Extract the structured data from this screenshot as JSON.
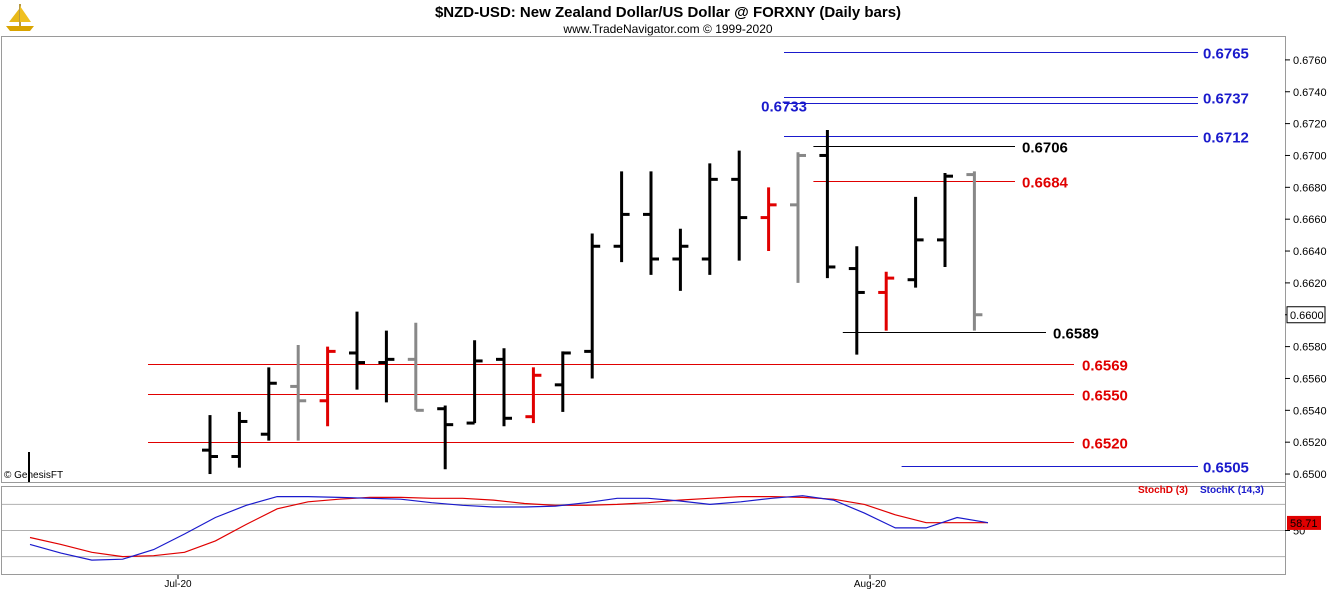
{
  "header": {
    "title": "$NZD-USD:  New Zealand Dollar/US Dollar @ FORXNY  (Daily bars)",
    "subtitle": "www.TradeNavigator.com © 1999-2020"
  },
  "logo_icon": "genesis-ship-logo-icon",
  "copyright": "© GenesisFT",
  "colors": {
    "bar_black": "#000000",
    "bar_gray": "#888888",
    "bar_red": "#e00000",
    "level_blue": "#1a1acc",
    "level_red": "#e00000",
    "level_black": "#000000",
    "stoch_k": "#1a1acc",
    "stoch_d": "#e00000"
  },
  "chart_data": [
    {
      "type": "ohlc",
      "title": "$NZD-USD:  New Zealand Dollar/US Dollar @ FORXNY  (Daily bars)",
      "ylim": [
        0.6495,
        0.6775
      ],
      "y_ticks": [
        "0.6760",
        "0.6740",
        "0.6720",
        "0.6700",
        "0.6680",
        "0.6660",
        "0.6640",
        "0.6620",
        "0.6600",
        "0.6580",
        "0.6560",
        "0.6540",
        "0.6520",
        "0.6500"
      ],
      "last_price": "0.6600",
      "x_ticks": [
        "Jul-20",
        "Aug-20"
      ],
      "bars": [
        {
          "open": 0.6515,
          "high": 0.6537,
          "low": 0.65,
          "close": 0.6511,
          "color": "black"
        },
        {
          "open": 0.6511,
          "high": 0.6539,
          "low": 0.6504,
          "close": 0.6533,
          "color": "black"
        },
        {
          "open": 0.6525,
          "high": 0.6567,
          "low": 0.6521,
          "close": 0.6557,
          "color": "black"
        },
        {
          "open": 0.6555,
          "high": 0.6581,
          "low": 0.6521,
          "close": 0.6546,
          "color": "gray"
        },
        {
          "open": 0.6546,
          "high": 0.658,
          "low": 0.653,
          "close": 0.6577,
          "color": "red"
        },
        {
          "open": 0.6576,
          "high": 0.6602,
          "low": 0.6553,
          "close": 0.657,
          "color": "black"
        },
        {
          "open": 0.657,
          "high": 0.659,
          "low": 0.6545,
          "close": 0.6572,
          "color": "black"
        },
        {
          "open": 0.6572,
          "high": 0.6595,
          "low": 0.654,
          "close": 0.654,
          "color": "gray"
        },
        {
          "open": 0.6541,
          "high": 0.6543,
          "low": 0.6503,
          "close": 0.6531,
          "color": "black"
        },
        {
          "open": 0.6532,
          "high": 0.6584,
          "low": 0.6532,
          "close": 0.6571,
          "color": "black"
        },
        {
          "open": 0.6572,
          "high": 0.6579,
          "low": 0.653,
          "close": 0.6535,
          "color": "black"
        },
        {
          "open": 0.6536,
          "high": 0.6567,
          "low": 0.6532,
          "close": 0.6562,
          "color": "red"
        },
        {
          "open": 0.6556,
          "high": 0.6577,
          "low": 0.6539,
          "close": 0.6576,
          "color": "black"
        },
        {
          "open": 0.6577,
          "high": 0.6651,
          "low": 0.656,
          "close": 0.6643,
          "color": "black"
        },
        {
          "open": 0.6643,
          "high": 0.669,
          "low": 0.6633,
          "close": 0.6663,
          "color": "black"
        },
        {
          "open": 0.6663,
          "high": 0.669,
          "low": 0.6625,
          "close": 0.6635,
          "color": "black"
        },
        {
          "open": 0.6635,
          "high": 0.6654,
          "low": 0.6615,
          "close": 0.6643,
          "color": "black"
        },
        {
          "open": 0.6635,
          "high": 0.6695,
          "low": 0.6625,
          "close": 0.6685,
          "color": "black"
        },
        {
          "open": 0.6685,
          "high": 0.6703,
          "low": 0.6634,
          "close": 0.6661,
          "color": "black"
        },
        {
          "open": 0.6661,
          "high": 0.668,
          "low": 0.664,
          "close": 0.6669,
          "color": "red"
        },
        {
          "open": 0.6669,
          "high": 0.6702,
          "low": 0.662,
          "close": 0.67,
          "color": "gray"
        },
        {
          "open": 0.67,
          "high": 0.6716,
          "low": 0.6623,
          "close": 0.663,
          "color": "black"
        },
        {
          "open": 0.6629,
          "high": 0.6643,
          "low": 0.6575,
          "close": 0.6614,
          "color": "black"
        },
        {
          "open": 0.6614,
          "high": 0.6627,
          "low": 0.659,
          "close": 0.6623,
          "color": "red"
        },
        {
          "open": 0.6622,
          "high": 0.6674,
          "low": 0.6617,
          "close": 0.6647,
          "color": "black"
        },
        {
          "open": 0.6647,
          "high": 0.6689,
          "low": 0.663,
          "close": 0.6687,
          "color": "black"
        },
        {
          "open": 0.6688,
          "high": 0.669,
          "low": 0.659,
          "close": 0.66,
          "color": "gray"
        }
      ],
      "levels": [
        {
          "value": 0.6765,
          "label": "0.6765",
          "color": "blue",
          "from_bar": 20
        },
        {
          "value": 0.6737,
          "label": "0.6737",
          "color": "blue",
          "from_bar": 20
        },
        {
          "value": 0.6733,
          "label": "0.6733",
          "color": "blue",
          "from_bar": 20
        },
        {
          "value": 0.6712,
          "label": "0.6712",
          "color": "blue",
          "from_bar": 20
        },
        {
          "value": 0.6706,
          "label": "0.6706",
          "color": "black",
          "from_bar": 21
        },
        {
          "value": 0.6684,
          "label": "0.6684",
          "color": "red",
          "from_bar": 21
        },
        {
          "value": 0.6589,
          "label": "0.6589",
          "color": "black",
          "from_bar": 22
        },
        {
          "value": 0.6569,
          "label": "0.6569",
          "color": "red",
          "from_bar": 0
        },
        {
          "value": 0.655,
          "label": "0.6550",
          "color": "red",
          "from_bar": 0
        },
        {
          "value": 0.652,
          "label": "0.6520",
          "color": "red",
          "from_bar": 0
        },
        {
          "value": 0.6505,
          "label": "0.6505",
          "color": "blue",
          "from_bar": 24
        }
      ]
    },
    {
      "type": "line",
      "title": "Stochastic",
      "ylim": [
        0,
        100
      ],
      "y_ticks": [
        "50"
      ],
      "last_value": "58.71",
      "series": [
        {
          "name": "StochD (3)",
          "color": "red",
          "values": [
            42,
            34,
            25,
            20,
            21,
            25,
            38,
            57,
            75,
            83,
            86,
            88,
            88,
            87,
            87,
            85,
            81,
            79,
            79,
            80,
            82,
            85,
            87,
            89,
            89,
            88,
            86,
            80,
            68,
            59,
            59,
            59
          ]
        },
        {
          "name": "StochK (14,3)",
          "color": "blue",
          "values": [
            34,
            24,
            16,
            17,
            28,
            46,
            65,
            79,
            89,
            89,
            88,
            87,
            86,
            82,
            79,
            77,
            77,
            78,
            82,
            87,
            87,
            84,
            80,
            83,
            87,
            90,
            85,
            70,
            53,
            53,
            65,
            59
          ]
        }
      ]
    }
  ]
}
